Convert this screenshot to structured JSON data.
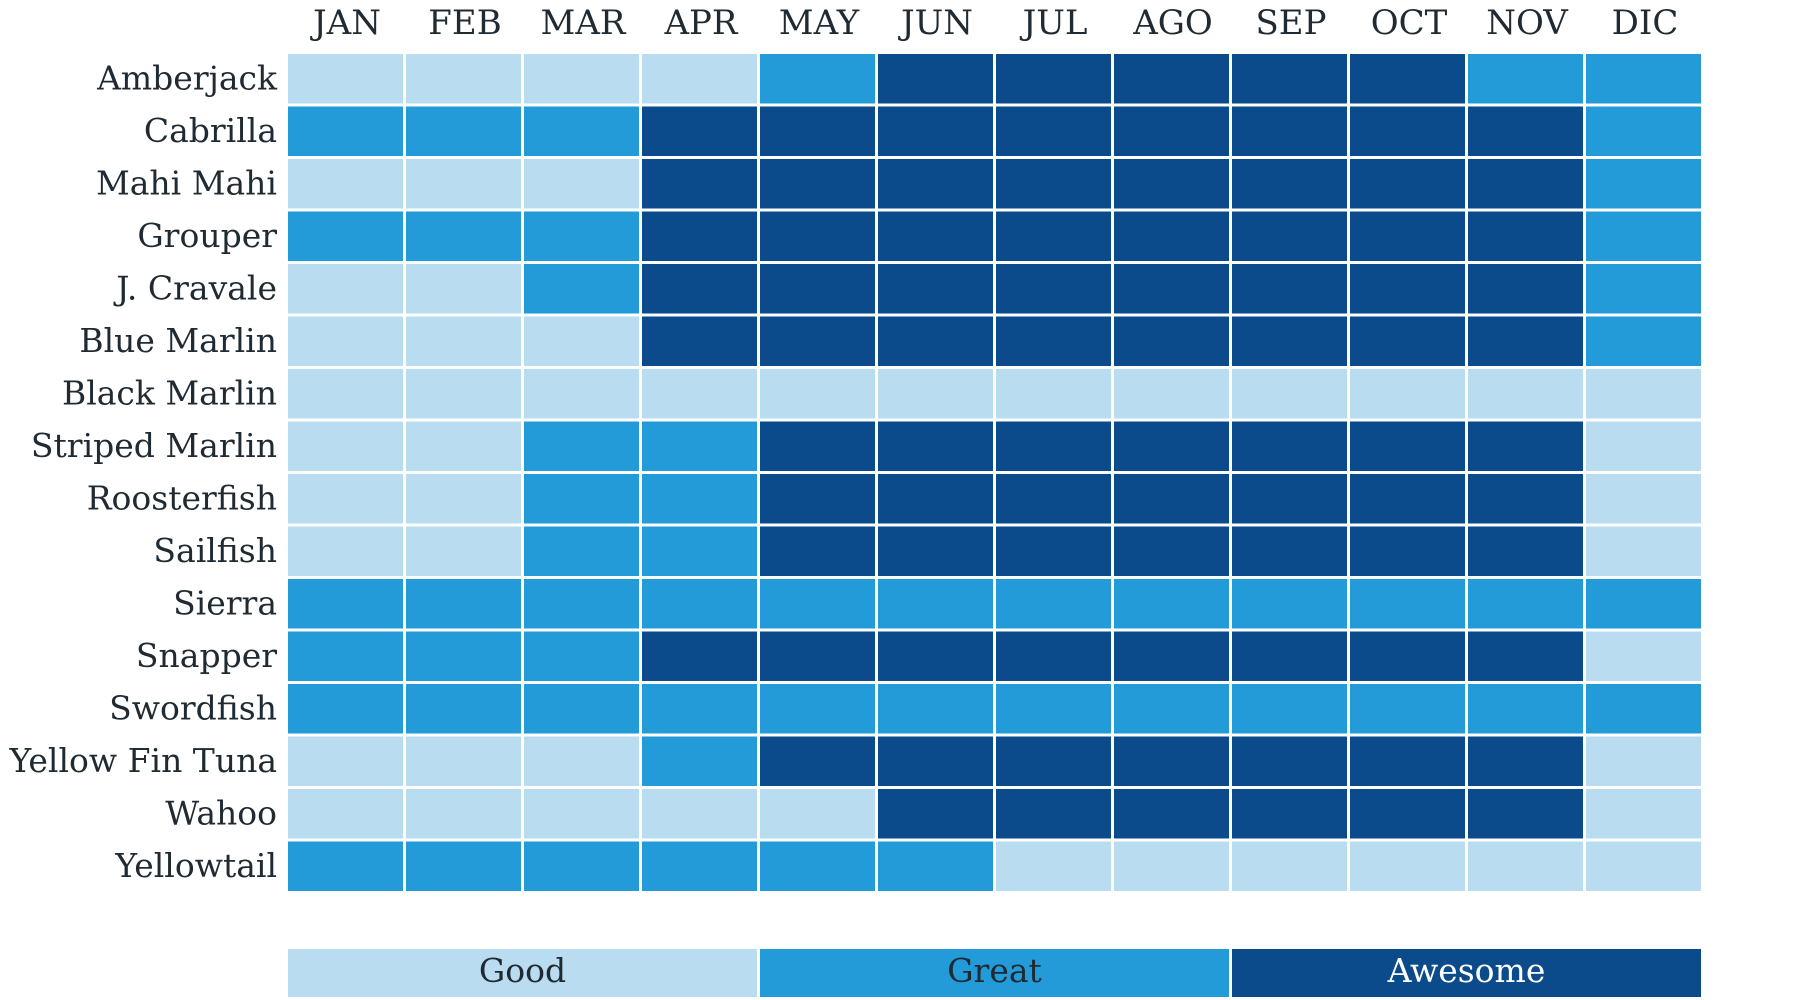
{
  "chart_data": {
    "type": "heatmap",
    "title": "",
    "x_categories": [
      "JAN",
      "FEB",
      "MAR",
      "APR",
      "MAY",
      "JUN",
      "JUL",
      "AGO",
      "SEP",
      "OCT",
      "NOV",
      "DIC"
    ],
    "y_categories": [
      "Amberjack",
      "Cabrilla",
      "Mahi Mahi",
      "Grouper",
      "J. Cravale",
      "Blue Marlin",
      "Black Marlin",
      "Striped Marlin",
      "Roosterfish",
      "Sailfish",
      "Sierra",
      "Snapper",
      "Swordfish",
      "Yellow Fin Tuna",
      "Wahoo",
      "Yellowtail"
    ],
    "levels": [
      {
        "value": 1,
        "label": "Good",
        "color": "#b9dcf1",
        "text_color": "#1f2a33"
      },
      {
        "value": 2,
        "label": "Great",
        "color": "#229bd8",
        "text_color": "#1f2a33"
      },
      {
        "value": 3,
        "label": "Awesome",
        "color": "#0b4b8c",
        "text_color": "#ffffff"
      }
    ],
    "values": [
      [
        1,
        1,
        1,
        1,
        2,
        3,
        3,
        3,
        3,
        3,
        2,
        2
      ],
      [
        2,
        2,
        2,
        3,
        3,
        3,
        3,
        3,
        3,
        3,
        3,
        2
      ],
      [
        1,
        1,
        1,
        3,
        3,
        3,
        3,
        3,
        3,
        3,
        3,
        2
      ],
      [
        2,
        2,
        2,
        3,
        3,
        3,
        3,
        3,
        3,
        3,
        3,
        2
      ],
      [
        1,
        1,
        2,
        3,
        3,
        3,
        3,
        3,
        3,
        3,
        3,
        2
      ],
      [
        1,
        1,
        1,
        3,
        3,
        3,
        3,
        3,
        3,
        3,
        3,
        2
      ],
      [
        1,
        1,
        1,
        1,
        1,
        1,
        1,
        1,
        1,
        1,
        1,
        1
      ],
      [
        1,
        1,
        2,
        2,
        3,
        3,
        3,
        3,
        3,
        3,
        3,
        1
      ],
      [
        1,
        1,
        2,
        2,
        3,
        3,
        3,
        3,
        3,
        3,
        3,
        1
      ],
      [
        1,
        1,
        2,
        2,
        3,
        3,
        3,
        3,
        3,
        3,
        3,
        1
      ],
      [
        2,
        2,
        2,
        2,
        2,
        2,
        2,
        2,
        2,
        2,
        2,
        2
      ],
      [
        2,
        2,
        2,
        3,
        3,
        3,
        3,
        3,
        3,
        3,
        3,
        1
      ],
      [
        2,
        2,
        2,
        2,
        2,
        2,
        2,
        2,
        2,
        2,
        2,
        2
      ],
      [
        1,
        1,
        1,
        2,
        3,
        3,
        3,
        3,
        3,
        3,
        3,
        1
      ],
      [
        1,
        1,
        1,
        1,
        1,
        3,
        3,
        3,
        3,
        3,
        3,
        1
      ],
      [
        2,
        2,
        2,
        2,
        2,
        2,
        1,
        1,
        1,
        1,
        1,
        1
      ]
    ],
    "legend_position": "bottom"
  }
}
